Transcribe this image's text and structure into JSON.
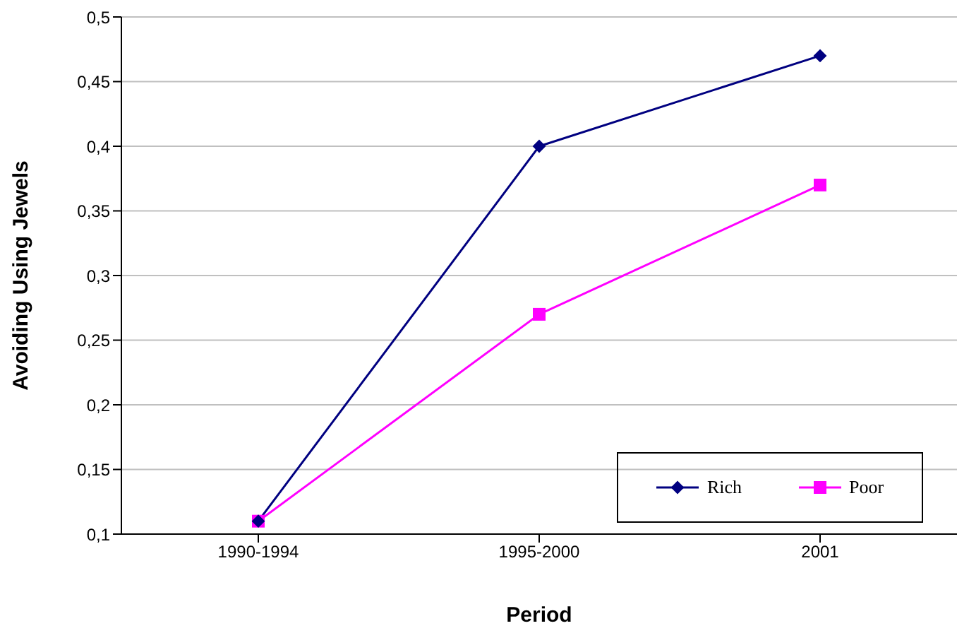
{
  "chart_data": {
    "type": "line",
    "xlabel": "Period",
    "ylabel": "Avoiding Using Jewels",
    "categories": [
      "1990-1994",
      "1995-2000",
      "2001"
    ],
    "series": [
      {
        "name": "Rich",
        "color": "#000080",
        "values": [
          0.11,
          0.4,
          0.47
        ],
        "marker": "diamond"
      },
      {
        "name": "Poor",
        "color": "#ff00ff",
        "values": [
          0.11,
          0.27,
          0.37
        ],
        "marker": "square"
      }
    ],
    "ylim": [
      0.1,
      0.5
    ],
    "yticks": [
      {
        "value": 0.1,
        "label": "0,1"
      },
      {
        "value": 0.15,
        "label": "0,15"
      },
      {
        "value": 0.2,
        "label": "0,2"
      },
      {
        "value": 0.25,
        "label": "0,25"
      },
      {
        "value": 0.3,
        "label": "0,3"
      },
      {
        "value": 0.35,
        "label": "0,35"
      },
      {
        "value": 0.4,
        "label": "0,4"
      },
      {
        "value": 0.45,
        "label": "0,45"
      },
      {
        "value": 0.5,
        "label": "0,5"
      }
    ],
    "grid": "y",
    "legend": "bottom right"
  }
}
